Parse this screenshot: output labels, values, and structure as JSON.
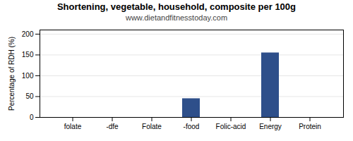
{
  "chart_data": {
    "type": "bar",
    "title": "Shortening, vegetable, household, composite per 100g",
    "subtitle": "www.dietandfitnesstoday.com",
    "ylabel": "Percentage of RDH (%)",
    "categories": [
      "folate",
      "-dfe",
      "Folate",
      "-food",
      "Folic-acid",
      "Energy",
      "Protein"
    ],
    "values": [
      0,
      0,
      0,
      45,
      0,
      155,
      0
    ],
    "color": "#2e4f8a",
    "ylim": [
      0,
      210
    ],
    "yticks": [
      0,
      50,
      100,
      150,
      200
    ],
    "grid": true
  }
}
